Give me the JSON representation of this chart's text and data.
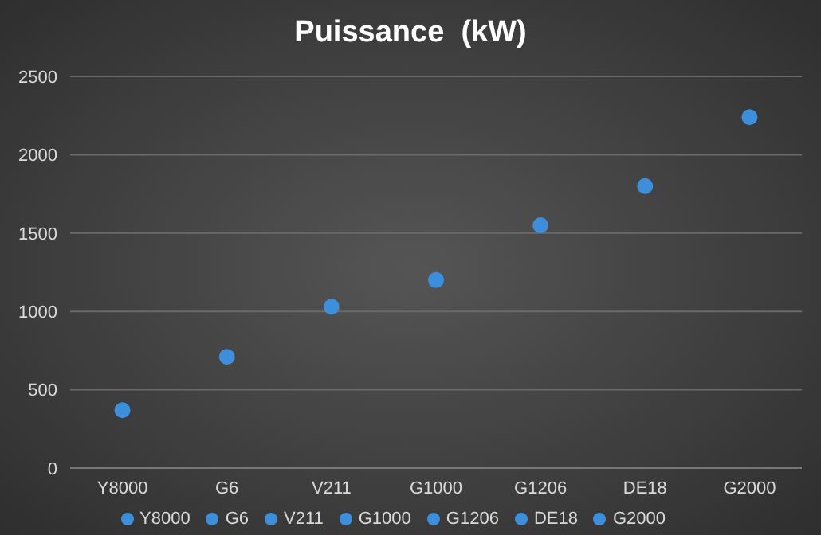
{
  "chart_data": {
    "type": "scatter",
    "title": "Puissance  (kW)",
    "categories": [
      "Y8000",
      "G6",
      "V211",
      "G1000",
      "G1206",
      "DE18",
      "G2000"
    ],
    "series": [
      {
        "name": "Y8000",
        "color": "#3d8fdc",
        "values": [
          370,
          null,
          null,
          null,
          null,
          null,
          null
        ]
      },
      {
        "name": "G6",
        "color": "#3d8fdc",
        "values": [
          null,
          710,
          null,
          null,
          null,
          null,
          null
        ]
      },
      {
        "name": "V211",
        "color": "#3d8fdc",
        "values": [
          null,
          null,
          1030,
          null,
          null,
          null,
          null
        ]
      },
      {
        "name": "G1000",
        "color": "#3d8fdc",
        "values": [
          null,
          null,
          null,
          1200,
          null,
          null,
          null
        ]
      },
      {
        "name": "G1206",
        "color": "#3d8fdc",
        "values": [
          null,
          null,
          null,
          null,
          1550,
          null,
          null
        ]
      },
      {
        "name": "DE18",
        "color": "#3d8fdc",
        "values": [
          null,
          null,
          null,
          null,
          null,
          1800,
          null
        ]
      },
      {
        "name": "G2000",
        "color": "#3d8fdc",
        "values": [
          null,
          null,
          null,
          null,
          null,
          null,
          2240
        ]
      }
    ],
    "ylim": [
      0,
      2500
    ],
    "yticks": [
      0,
      500,
      1000,
      1500,
      2000,
      2500
    ],
    "grid": "y",
    "legend": "bottom",
    "marker": "circle"
  }
}
